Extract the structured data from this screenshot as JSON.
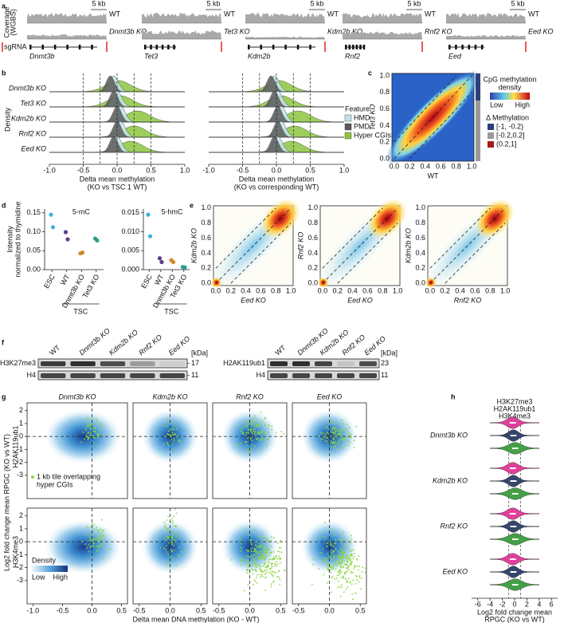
{
  "panel_labels": [
    "a",
    "b",
    "c",
    "d",
    "e",
    "f",
    "g",
    "h"
  ],
  "a": {
    "y_label": [
      "Coverage",
      "(WGBS)"
    ],
    "sgrna": "sgRNA",
    "tracks": [
      {
        "scale": "5 kb",
        "wt": "WT",
        "ko": "Dnmt3b KO",
        "gene": "Dnmt3b"
      },
      {
        "scale": "5 kb",
        "wt": "WT",
        "ko": "Tet3 KO",
        "gene": "Tet3"
      },
      {
        "scale": "5 kb",
        "wt": "WT",
        "ko": "Kdm2b KO",
        "gene": "Kdm2b"
      },
      {
        "scale": "5 kb",
        "wt": "WT",
        "ko": "Rnf2 KO",
        "gene": "Rnf2"
      },
      {
        "scale": "5 kb",
        "wt": "WT",
        "ko": "Eed KO",
        "gene": "Eed"
      }
    ]
  },
  "b": {
    "y_label": "Density",
    "rows": [
      "Dnmt3b KO",
      "Tet3 KO",
      "Kdm2b KO",
      "Rnf2 KO",
      "Eed KO"
    ],
    "xticks": [
      "-1.0",
      "-0.5",
      "0.0",
      "0.5",
      "1.0"
    ],
    "x_label_left": [
      "Delta mean methylation",
      "(KO vs TSC 1 WT)"
    ],
    "x_label_right": [
      "Delta mean methylation",
      "(KO vs corresponding WT)"
    ],
    "legend_title": "Feature",
    "legend": [
      "HMD",
      "PMD",
      "Hyper CGIs"
    ]
  },
  "c": {
    "x_label": "WT",
    "y_label": "Tet3 KO",
    "ticks": [
      "0.0",
      "0.2",
      "0.4",
      "0.6",
      "0.8",
      "1.0"
    ],
    "density_title": [
      "CpG methylation",
      "density"
    ],
    "low": "Low",
    "high": "High",
    "delta_title": "Δ Methylation",
    "delta_legend": [
      "[-1, -0.2)",
      "[-0.2,0.2]",
      "(0.2,1]"
    ]
  },
  "chart_data": [
    {
      "type": "strip",
      "title": "5-mC",
      "categories": [
        "ESC",
        "WT",
        "Dnmt3b KO",
        "Tet3 KO"
      ],
      "values": [
        [
          0.145,
          0.112
        ],
        [
          0.099,
          0.08
        ],
        [
          0.043,
          0.045
        ],
        [
          0.082,
          0.077
        ]
      ],
      "colors": [
        "#3bb3d6",
        "#5b3f8c",
        "#d08a2a",
        "#2a9d8f"
      ],
      "ylim": [
        0,
        0.16
      ],
      "yticks": [
        {
          "value": 0,
          "label": "0.00"
        },
        {
          "value": 0.05,
          "label": "0.05"
        },
        {
          "value": 0.1,
          "label": "0.10"
        },
        {
          "value": 0.15,
          "label": "0.15"
        }
      ]
    },
    {
      "type": "strip",
      "title": "5-hmC",
      "categories": [
        "ESC",
        "WT",
        "Dnmt3b KO",
        "Tet3 KO"
      ],
      "values": [
        [
          0.0145,
          0.0088
        ],
        [
          0.003,
          0.002
        ],
        [
          0.0025,
          0.002
        ],
        [
          0.0007,
          0.0006
        ]
      ],
      "colors": [
        "#3bb3d6",
        "#5b3f8c",
        "#d08a2a",
        "#2a9d8f"
      ],
      "ylim": [
        0,
        0.016
      ],
      "yticks": [
        {
          "value": 0,
          "label": "0.000"
        },
        {
          "value": 0.005,
          "label": "0.005"
        },
        {
          "value": 0.01,
          "label": "0.010"
        },
        {
          "value": 0.015,
          "label": "0.015"
        }
      ]
    }
  ],
  "d": {
    "y_label": [
      "Intensity",
      "normalized to thymidine"
    ],
    "group_labels": [
      "TSC",
      "TSC"
    ]
  },
  "e": {
    "ticks": [
      "0.0",
      "0.2",
      "0.4",
      "0.6",
      "0.8",
      "1.0"
    ],
    "plots": [
      {
        "x_label": "Eed KO",
        "y_label": "Kdm2b KO"
      },
      {
        "x_label": "Eed KO",
        "y_label": "Rnf2 KO"
      },
      {
        "x_label": "Rnf2 KO",
        "y_label": "Kdm2b KO"
      }
    ]
  },
  "f": {
    "blots": [
      {
        "lanes": [
          "WT",
          "Dnmt3b KO",
          "Kdm2b KO",
          "Rnf2 KO",
          "Eed KO"
        ],
        "kda": "[kDa]",
        "rows": [
          {
            "label": "H3K27me3",
            "size": "17"
          },
          {
            "label": "H4",
            "size": "11"
          }
        ]
      },
      {
        "lanes": [
          "WT",
          "Dnmt3b KO",
          "Kdm2b KO",
          "Rnf2 KO",
          "Eed KO"
        ],
        "kda": "[kDa]",
        "rows": [
          {
            "label": "H2AK119ub1",
            "size": "23"
          },
          {
            "label": "H4",
            "size": "11"
          }
        ]
      }
    ]
  },
  "g": {
    "columns": [
      "Dnmt3b KO",
      "Kdm2b KO",
      "Rnf2 KO",
      "Eed KO"
    ],
    "rows": [
      "H2AK119ub1",
      "H3K4me3"
    ],
    "yticks": [
      "2",
      "1",
      "0",
      "-1",
      "-2",
      "-3"
    ],
    "xticks_first": [
      "-1.0",
      "-0.5",
      "0.0",
      "0.5"
    ],
    "xticks": [
      "-0.5",
      "0.0",
      "0.5"
    ],
    "y_label": "Log2 fold change mean RPGC (KO vs WT)",
    "x_label": "Delta mean DNA methylation (KO - WT)",
    "dots_legend": [
      "1 kb tile overlapping",
      "hyper CGIs"
    ],
    "density_title": "Density",
    "low": "Low",
    "high": "High"
  },
  "h": {
    "legend": [
      "H3K27me3",
      "H2AK119ub1",
      "H3K4me3"
    ],
    "rows": [
      "Dnmt3b KO",
      "Kdm2b KO",
      "Rnf2 KO",
      "Eed KO"
    ],
    "xticks": [
      "-6",
      "-4",
      "-2",
      "0",
      "2",
      "4",
      "6"
    ],
    "x_label": [
      "Log2 fold change mean",
      "RPGC (KO vs WT)"
    ]
  }
}
